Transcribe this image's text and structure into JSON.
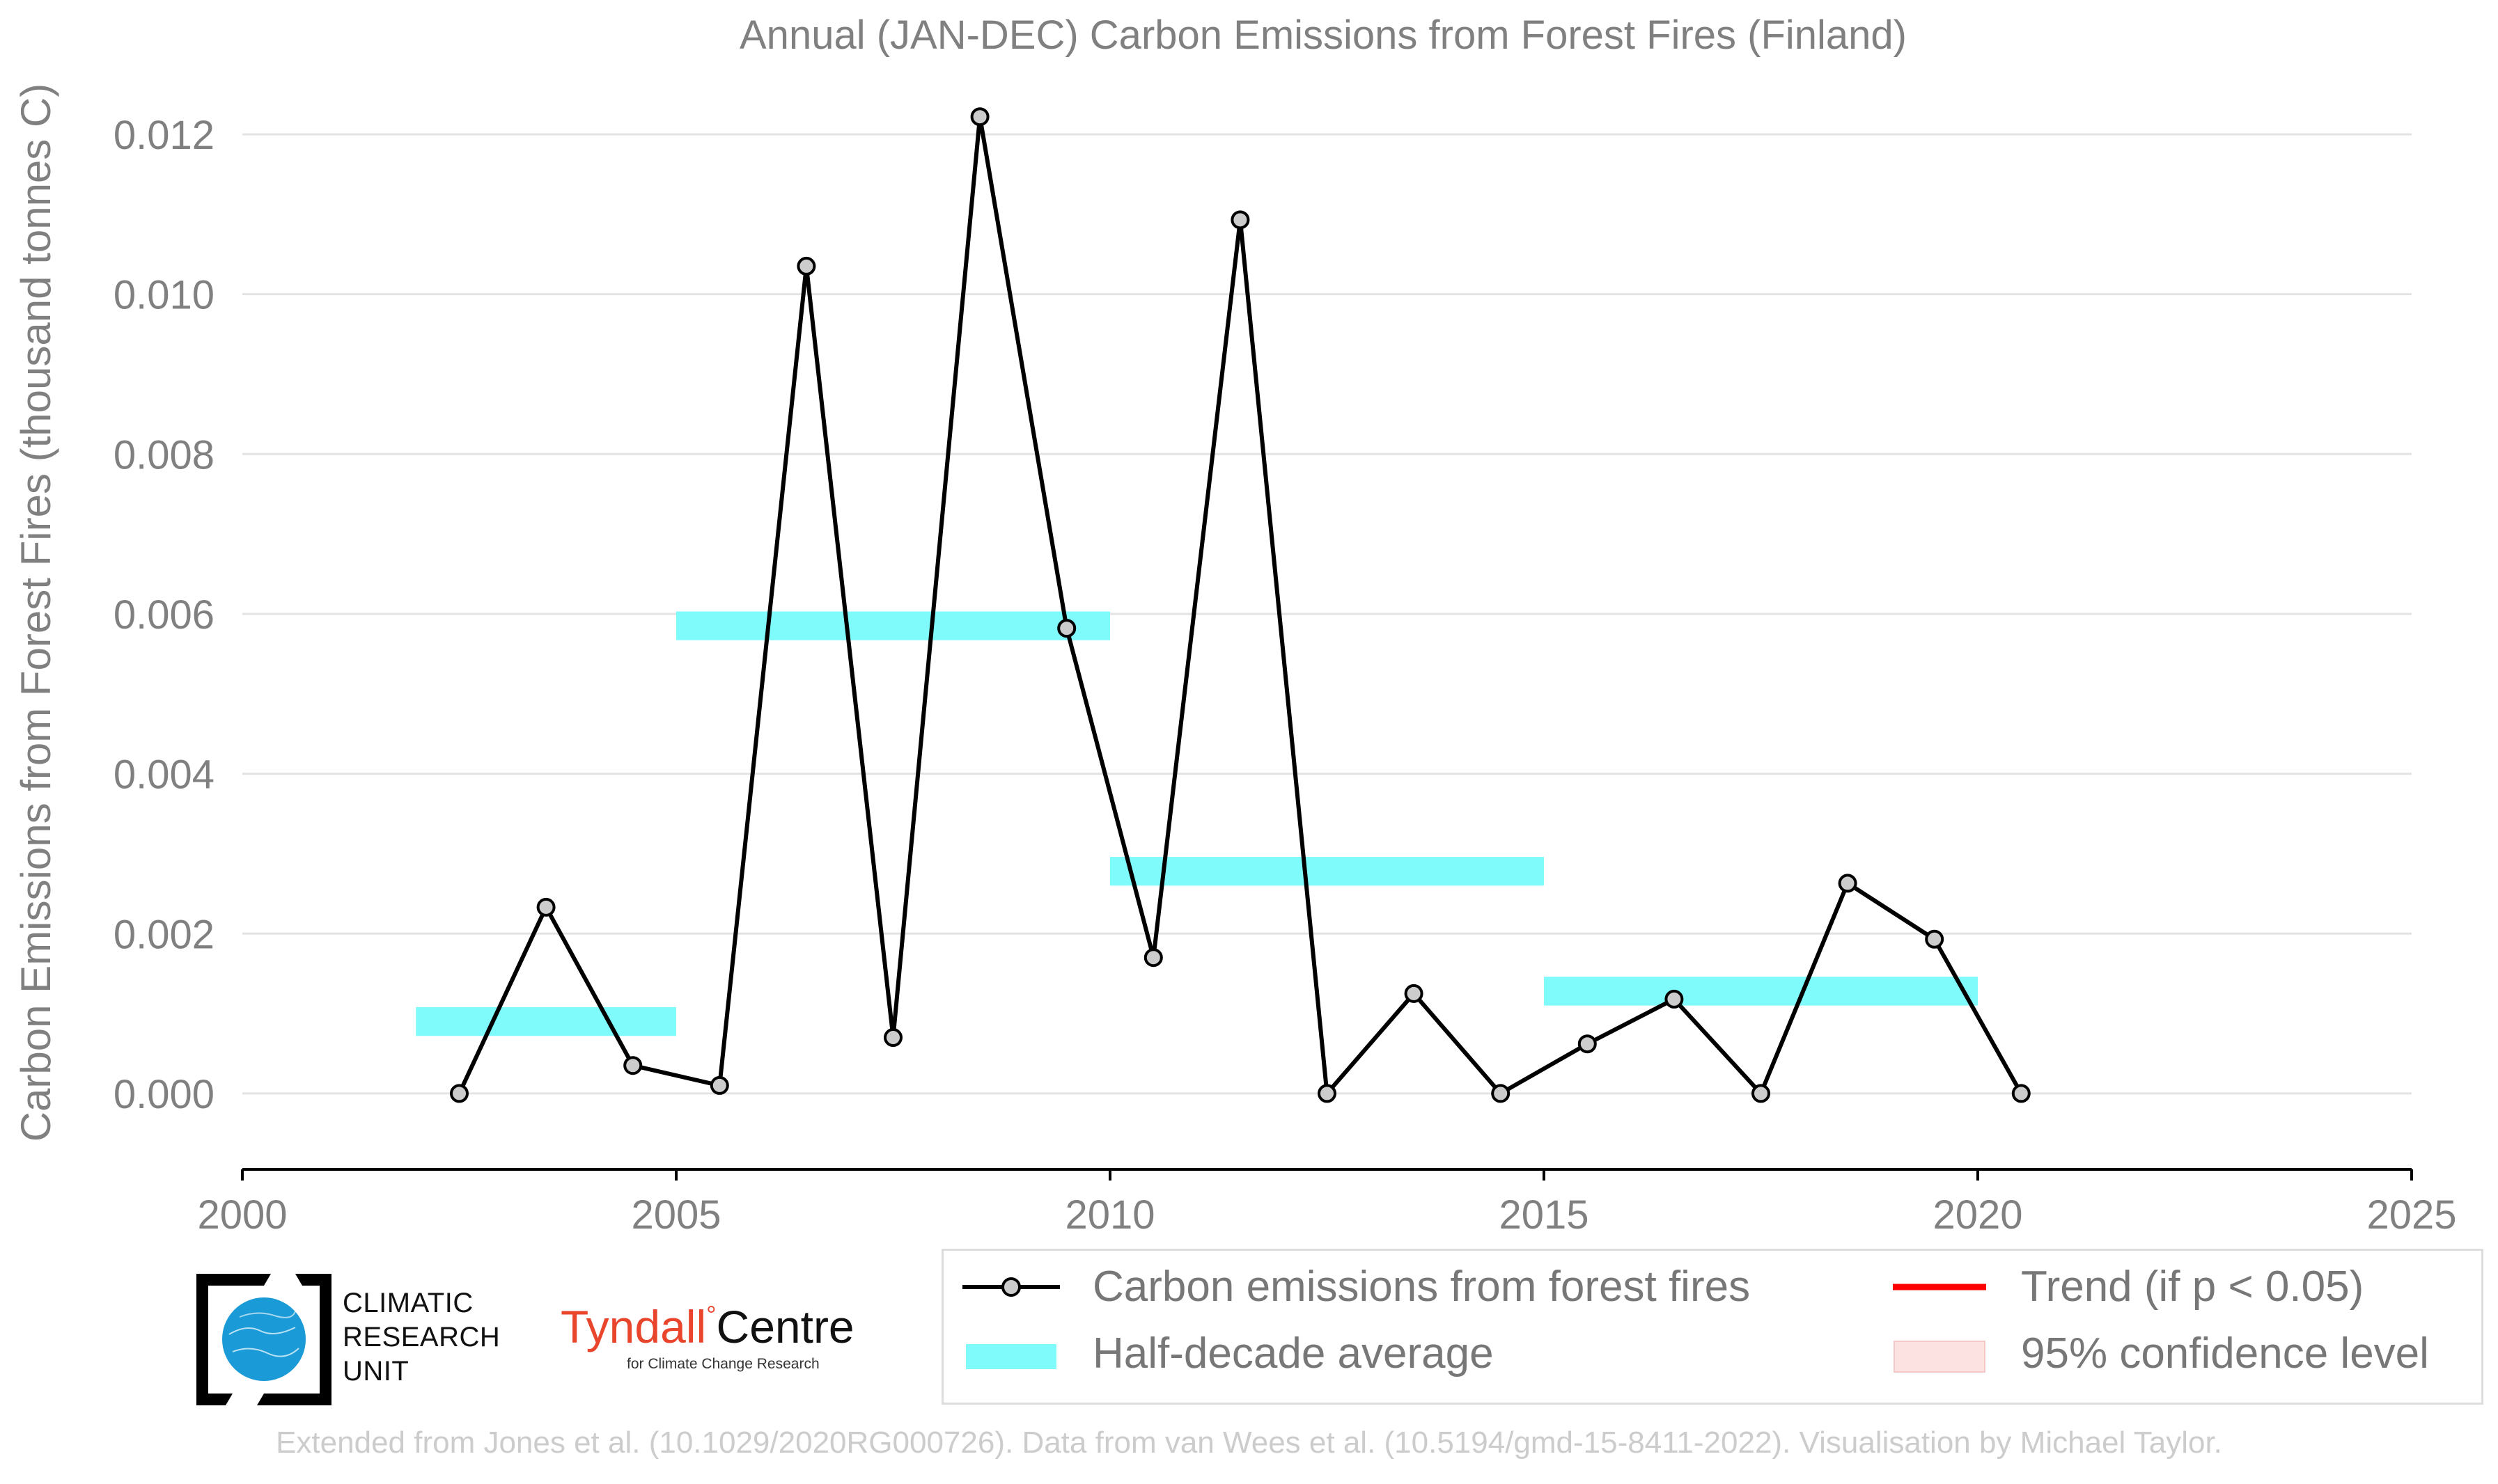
{
  "chart_data": {
    "type": "line",
    "title": "Annual (JAN-DEC) Carbon Emissions from Forest Fires (Finland)",
    "ylabel": "Carbon Emissions from Forest Fires (thousand tonnes C)",
    "xlabel": "",
    "xlim": [
      2000,
      2025
    ],
    "ylim": [
      -0.00095,
      0.0122
    ],
    "xticks": [
      "2000",
      "2005",
      "2010",
      "2015",
      "2020",
      "2025"
    ],
    "yticks": [
      "0.000",
      "0.002",
      "0.004",
      "0.006",
      "0.008",
      "0.010",
      "0.012"
    ],
    "grid": "horizontal",
    "series": [
      {
        "name": "Carbon emissions from forest fires",
        "color": "#000000",
        "marker_color": "#cccccc",
        "x": [
          2002.5,
          2003.5,
          2004.5,
          2005.5,
          2006.5,
          2007.5,
          2008.5,
          2009.5,
          2010.5,
          2011.5,
          2012.5,
          2013.5,
          2014.5,
          2015.5,
          2016.5,
          2017.5,
          2018.5,
          2019.5,
          2020.5
        ],
        "y": [
          0.0,
          0.00233,
          0.00035,
          0.0001,
          0.01035,
          0.0007,
          0.01222,
          0.00582,
          0.0017,
          0.01093,
          0.0,
          0.00125,
          0.0,
          0.00062,
          0.00118,
          0.0,
          0.00263,
          0.00193,
          0.0
        ]
      }
    ],
    "half_decade_average": {
      "name": "Half-decade average",
      "color": "#7ffbfb",
      "segments": [
        {
          "x0": 2002,
          "x1": 2005,
          "y": 0.0009
        },
        {
          "x0": 2005,
          "x1": 2010,
          "y": 0.00585
        },
        {
          "x0": 2010,
          "x1": 2015,
          "y": 0.00278
        },
        {
          "x0": 2015,
          "x1": 2020,
          "y": 0.00128
        }
      ]
    }
  },
  "legend": {
    "items": [
      {
        "label": "Carbon emissions from forest fires"
      },
      {
        "label": "Half-decade average"
      },
      {
        "label": "Trend (if p < 0.05)",
        "color": "#ff0000"
      },
      {
        "label": "95% confidence level",
        "color": "#fde2e2"
      }
    ]
  },
  "logos": {
    "cru_lines": [
      "CLIMATIC",
      "RESEARCH",
      "UNIT"
    ],
    "tyndall_main_a": "Tyndall",
    "tyndall_main_b": "Centre",
    "tyndall_sub": "for Climate Change Research"
  },
  "footer": "Extended from Jones et al. (10.1029/2020RG000726). Data from van Wees et al. (10.5194/gmd-15-8411-2022). Visualisation by Michael Taylor."
}
